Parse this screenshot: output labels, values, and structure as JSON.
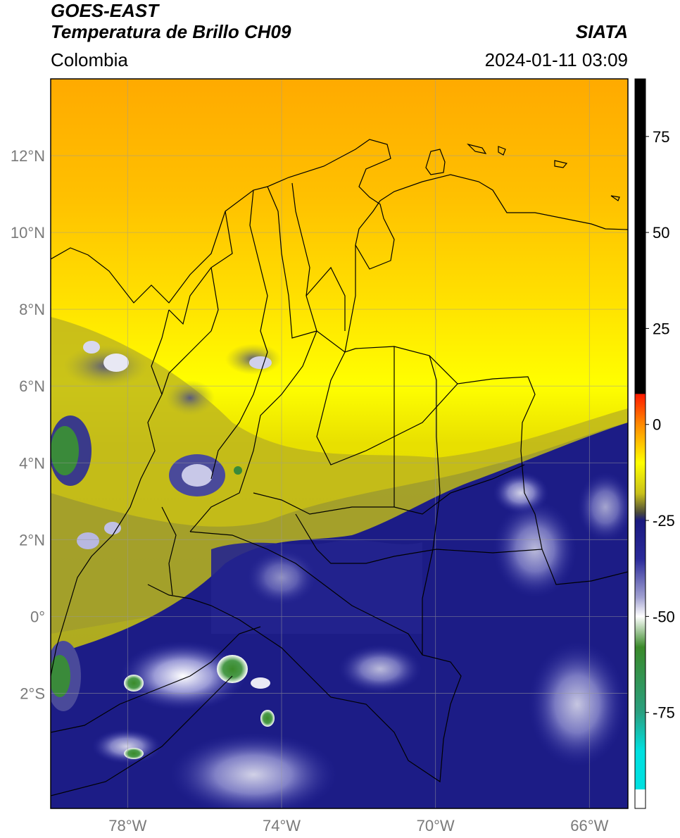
{
  "header": {
    "satellite": "GOES-EAST",
    "product": "Temperatura de Brillo CH09",
    "region": "Colombia",
    "brand": "SIATA",
    "datetime": "2024-01-11 03:09"
  },
  "map": {
    "lon_range": [
      -80,
      -65
    ],
    "lat_range": [
      -5,
      14
    ],
    "lon_ticks": [
      {
        "value": -78,
        "label": "78°W"
      },
      {
        "value": -74,
        "label": "74°W"
      },
      {
        "value": -70,
        "label": "70°W"
      },
      {
        "value": -66,
        "label": "66°W"
      }
    ],
    "lat_ticks": [
      {
        "value": 12,
        "label": "12°N"
      },
      {
        "value": 10,
        "label": "10°N"
      },
      {
        "value": 8,
        "label": "8°N"
      },
      {
        "value": 6,
        "label": "6°N"
      },
      {
        "value": 4,
        "label": "4°N"
      },
      {
        "value": 2,
        "label": "2°N"
      },
      {
        "value": 0,
        "label": "0°"
      },
      {
        "value": -2,
        "label": "2°S"
      }
    ],
    "grid": true
  },
  "colorbar": {
    "range": [
      -100,
      90
    ],
    "ticks": [
      {
        "value": 75,
        "label": "75"
      },
      {
        "value": 50,
        "label": "50"
      },
      {
        "value": 25,
        "label": "25"
      },
      {
        "value": 0,
        "label": "0"
      },
      {
        "value": -25,
        "label": "-25"
      },
      {
        "value": -50,
        "label": "-50"
      },
      {
        "value": -75,
        "label": "-75"
      }
    ],
    "stops": [
      {
        "value": 90,
        "color": "#000000"
      },
      {
        "value": 8,
        "color": "#000000"
      },
      {
        "value": 7.9,
        "color": "#ff1a00"
      },
      {
        "value": 0,
        "color": "#ff8a00"
      },
      {
        "value": -10,
        "color": "#ffff00"
      },
      {
        "value": -18,
        "color": "#c8c01a"
      },
      {
        "value": -23,
        "color": "#4a4a3a"
      },
      {
        "value": -25,
        "color": "#1a1a80"
      },
      {
        "value": -35,
        "color": "#2a2a9a"
      },
      {
        "value": -45,
        "color": "#a0a0d0"
      },
      {
        "value": -50,
        "color": "#ffffff"
      },
      {
        "value": -58,
        "color": "#3a8a2a"
      },
      {
        "value": -75,
        "color": "#2aa080"
      },
      {
        "value": -85,
        "color": "#00e0e0"
      },
      {
        "value": -95,
        "color": "#00e0e0"
      },
      {
        "value": -95.1,
        "color": "#ffffff"
      },
      {
        "value": -100,
        "color": "#ffffff"
      }
    ]
  }
}
